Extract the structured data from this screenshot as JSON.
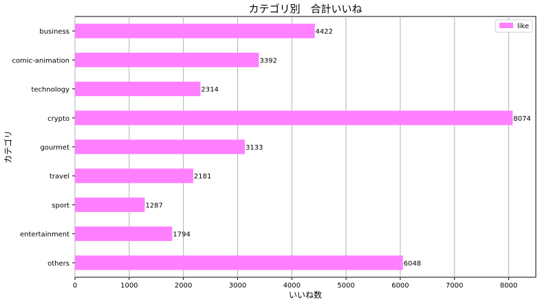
{
  "chart_data": {
    "type": "bar",
    "orientation": "horizontal",
    "title": "カテゴリ別　合計いいね",
    "xlabel": "いいね数",
    "ylabel": "カテゴリ",
    "categories": [
      "business",
      "comic-animation",
      "technology",
      "crypto",
      "gourmet",
      "travel",
      "sport",
      "entertainment",
      "others"
    ],
    "series": [
      {
        "name": "like",
        "values": [
          4422,
          3392,
          2314,
          8074,
          3133,
          2181,
          1287,
          1794,
          6048
        ]
      }
    ],
    "xlim": [
      0,
      8500
    ],
    "xticks": [
      0,
      1000,
      2000,
      3000,
      4000,
      5000,
      6000,
      7000,
      8000
    ],
    "grid": "vertical",
    "legend": "top-right",
    "bar_color": "#ff80ff",
    "grid_color": "#b0b0b0"
  }
}
